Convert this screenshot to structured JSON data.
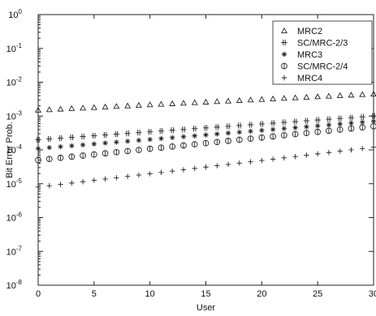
{
  "chart_data": {
    "type": "scatter",
    "title": "",
    "xlabel": "User",
    "ylabel": "Bit Error Prob.",
    "xlim": [
      0,
      30
    ],
    "ylim_exponent": [
      -8,
      0
    ],
    "yscale": "log",
    "grid": false,
    "legend_position": "top-right",
    "x_ticks": [
      "0",
      "5",
      "10",
      "15",
      "20",
      "25",
      "30"
    ],
    "y_ticks": [
      {
        "exp": 0,
        "base": "10",
        "sup": "0"
      },
      {
        "exp": -1,
        "base": "10",
        "sup": "-1"
      },
      {
        "exp": -2,
        "base": "10",
        "sup": "-2"
      },
      {
        "exp": -3,
        "base": "10",
        "sup": "-3"
      },
      {
        "exp": -4,
        "base": "10",
        "sup": "-4"
      },
      {
        "exp": -5,
        "base": "10",
        "sup": "-5"
      },
      {
        "exp": -6,
        "base": "10",
        "sup": "-6"
      },
      {
        "exp": -7,
        "base": "10",
        "sup": "-7"
      },
      {
        "exp": -8,
        "base": "10",
        "sup": "-8"
      }
    ],
    "x": [
      0,
      1,
      2,
      3,
      4,
      5,
      6,
      7,
      8,
      9,
      10,
      11,
      12,
      13,
      14,
      15,
      16,
      17,
      18,
      19,
      20,
      21,
      22,
      23,
      24,
      25,
      26,
      27,
      28,
      29,
      30
    ],
    "series": [
      {
        "name": "MRC2",
        "marker": "triangle",
        "start_value": 0.0015,
        "end_value": 0.0045
      },
      {
        "name": "SC/MRC-2/3",
        "marker": "plus-double",
        "start_value": 0.0002,
        "end_value": 0.001
      },
      {
        "name": "MRC3",
        "marker": "star",
        "start_value": 0.00011,
        "end_value": 0.0007
      },
      {
        "name": "SC/MRC-2/4",
        "marker": "circle",
        "start_value": 5e-05,
        "end_value": 0.0005
      },
      {
        "name": "MRC4",
        "marker": "plus",
        "start_value": 8e-06,
        "end_value": 0.00012
      }
    ]
  }
}
